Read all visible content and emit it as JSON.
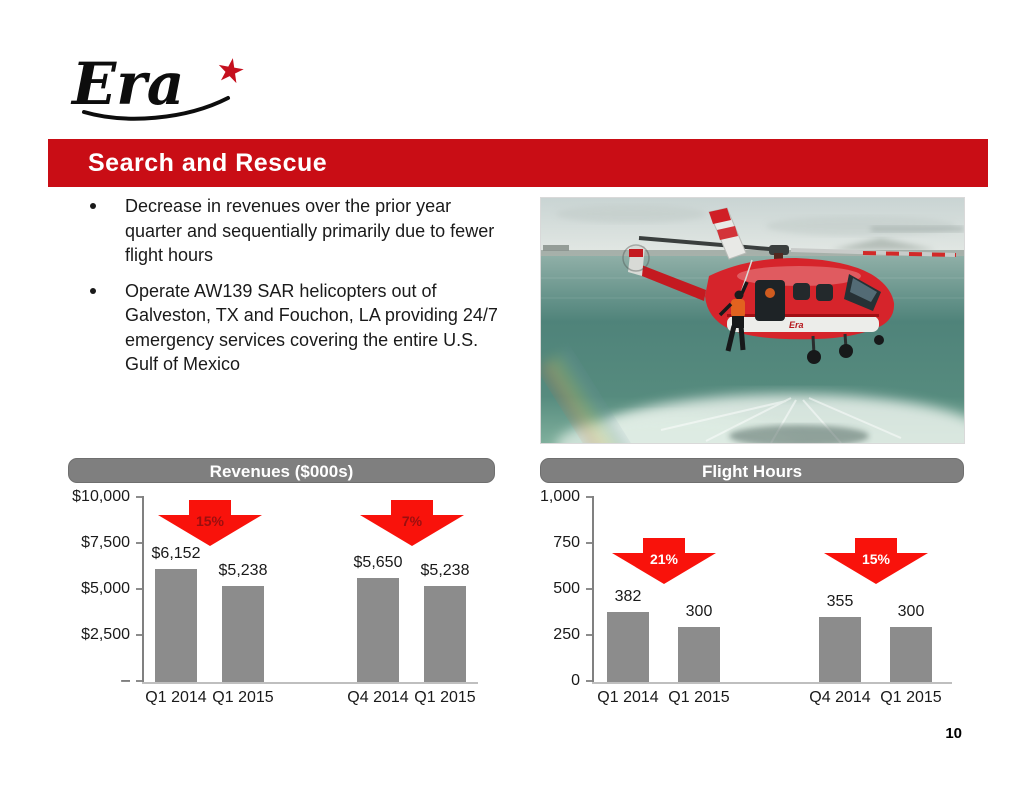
{
  "slide": {
    "logo": {
      "text": "Era",
      "star": "★"
    },
    "title_banner": "Search and Rescue",
    "bullets": [
      "Decrease in revenues over the prior year quarter and sequentially primarily due to fewer flight hours",
      "Operate AW139 SAR helicopters out of Galveston, TX and Fouchon, LA providing 24/7 emergency services covering the entire U.S. Gulf of Mexico"
    ],
    "page_number": "10"
  },
  "photo": {
    "description": "Red Era AW139 search-and-rescue helicopter hovering low over the sea, rescue swimmer on the hoist line, rotor-wash spray and faint rainbow below",
    "aircraft_logo": "Era"
  },
  "chart_data": [
    {
      "type": "bar",
      "title": "Revenues ($000s)",
      "categories": [
        "Q1 2014",
        "Q1 2015",
        "Q4 2014",
        "Q1 2015"
      ],
      "values": [
        6152,
        5238,
        5650,
        5238
      ],
      "value_labels": [
        "$6,152",
        "$5,238",
        "$5,650",
        "$5,238"
      ],
      "ytick_labels": [
        "$10,000",
        "$7,500",
        "$5,000",
        "$2,500",
        "–"
      ],
      "ylim": [
        0,
        10000
      ],
      "grid": false,
      "annotations": [
        {
          "label": "15%",
          "between": [
            0,
            1
          ]
        },
        {
          "label": "7%",
          "between": [
            2,
            3
          ]
        }
      ],
      "bar_color": "#8C8C8C",
      "arrow_color": "#F9120B",
      "arrow_text_color": "#9B0F0F"
    },
    {
      "type": "bar",
      "title": "Flight Hours",
      "categories": [
        "Q1 2014",
        "Q1 2015",
        "Q4 2014",
        "Q1 2015"
      ],
      "values": [
        382,
        300,
        355,
        300
      ],
      "value_labels": [
        "382",
        "300",
        "355",
        "300"
      ],
      "ytick_labels": [
        "1,000",
        "750",
        "500",
        "250",
        "0"
      ],
      "ylim": [
        0,
        1000
      ],
      "grid": false,
      "annotations": [
        {
          "label": "21%",
          "between": [
            0,
            1
          ]
        },
        {
          "label": "15%",
          "between": [
            2,
            3
          ]
        }
      ],
      "bar_color": "#8C8C8C",
      "arrow_color": "#F9120B",
      "arrow_text_color": "#FFFFFF"
    }
  ],
  "colors": {
    "brand_red": "#C90D15",
    "star_red": "#C5101E",
    "header_gray": "#7F7F7F",
    "bar_gray": "#8C8C8C",
    "arrow_red": "#F9120B",
    "arrow_text_dark_red": "#9B0F0F",
    "text_dark": "#1A1A1A"
  }
}
